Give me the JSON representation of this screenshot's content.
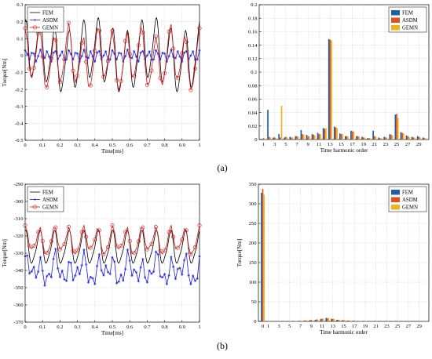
{
  "panel_labels": [
    "(a)",
    "(b)"
  ],
  "chart_data": [
    {
      "id": "a-time",
      "type": "line",
      "xlabel": "Time[ms]",
      "ylabel": "Torque[Nm]",
      "xlim": [
        0,
        1
      ],
      "ylim": [
        -0.5,
        0.3
      ],
      "xticks": [
        "0",
        "0.1",
        "0.2",
        "0.3",
        "0.4",
        "0.5",
        "0.6",
        "0.7",
        "0.8",
        "0.9",
        "1"
      ],
      "yticks": [
        "-0.5",
        "-0.4",
        "-0.3",
        "-0.2",
        "-0.1",
        "0",
        "0.1",
        "0.2",
        "0.3"
      ],
      "grid": true,
      "legend_position": "top-left",
      "series": [
        {
          "name": "FEM",
          "color": "#000000",
          "marker": "none",
          "model": {
            "mean": 0.0,
            "terms": [
              {
                "h": 12,
                "amp": 0.17,
                "phase": 1.57
              },
              {
                "h": 3,
                "amp": 0.045,
                "phase": 0.5
              },
              {
                "h": 24,
                "amp": 0.03,
                "phase": 0.3
              }
            ]
          }
        },
        {
          "name": "ASDM",
          "color": "#1a1aee",
          "marker": "asterisk",
          "model": {
            "mean": 0.0,
            "terms": [
              {
                "h": 24,
                "amp": 0.03,
                "phase": 1.2
              },
              {
                "h": 12,
                "amp": 0.008,
                "phase": 0.4
              }
            ]
          }
        },
        {
          "name": "GEMN",
          "color": "#dd1111",
          "marker": "circle",
          "model": {
            "mean": -0.02,
            "terms": [
              {
                "h": 12,
                "amp": 0.155,
                "phase": 1.7
              },
              {
                "h": 24,
                "amp": 0.025,
                "phase": 0.9
              },
              {
                "h": 5,
                "amp": 0.04,
                "phase": 0.2
              }
            ]
          }
        }
      ]
    },
    {
      "id": "a-harmonics",
      "type": "bar",
      "xlabel": "Time harmonic order",
      "ylabel": "",
      "ylim": [
        0,
        0.2
      ],
      "yticks": [
        "0",
        "0.02",
        "0.04",
        "0.06",
        "0.08",
        "0.1",
        "0.12",
        "0.14",
        "0.16",
        "0.18",
        "0.2"
      ],
      "xticks": [
        "1",
        "3",
        "5",
        "7",
        "9",
        "11",
        "13",
        "15",
        "17",
        "19",
        "21",
        "23",
        "25",
        "27",
        "29"
      ],
      "grid": true,
      "legend_position": "top-right",
      "categories": [
        "1",
        "2",
        "3",
        "4",
        "5",
        "6",
        "7",
        "8",
        "9",
        "10",
        "11",
        "12",
        "13",
        "14",
        "15",
        "16",
        "17",
        "18",
        "19",
        "20",
        "21",
        "22",
        "23",
        "24",
        "25",
        "26",
        "27",
        "28",
        "29",
        "30"
      ],
      "series": [
        {
          "name": "FEM",
          "color": "#1f5fa8",
          "values": [
            0.001,
            0.044,
            0.003,
            0.008,
            0.003,
            0.004,
            0.005,
            0.014,
            0.007,
            0.008,
            0.01,
            0.017,
            0.149,
            0.019,
            0.009,
            0.005,
            0.013,
            0.005,
            0.004,
            0.002,
            0.013,
            0.003,
            0.004,
            0.008,
            0.037,
            0.011,
            0.006,
            0.004,
            0.005,
            0.003
          ]
        },
        {
          "name": "ASDM",
          "color": "#e0521b",
          "values": [
            0.002,
            0.004,
            0.003,
            0.003,
            0.004,
            0.003,
            0.005,
            0.008,
            0.005,
            0.007,
            0.008,
            0.016,
            0.148,
            0.018,
            0.008,
            0.005,
            0.012,
            0.005,
            0.003,
            0.002,
            0.005,
            0.002,
            0.003,
            0.007,
            0.038,
            0.01,
            0.005,
            0.003,
            0.004,
            0.002
          ]
        },
        {
          "name": "GEMN",
          "color": "#f0b21e",
          "values": [
            0.001,
            0.003,
            0.002,
            0.05,
            0.003,
            0.003,
            0.004,
            0.007,
            0.005,
            0.006,
            0.008,
            0.017,
            0.147,
            0.017,
            0.008,
            0.004,
            0.012,
            0.004,
            0.003,
            0.002,
            0.004,
            0.002,
            0.003,
            0.006,
            0.032,
            0.009,
            0.004,
            0.003,
            0.003,
            0.002
          ]
        }
      ]
    },
    {
      "id": "b-time",
      "type": "line",
      "xlabel": "Time[ms]",
      "ylabel": "Torque[Nm]",
      "xlim": [
        0,
        1
      ],
      "ylim": [
        -370,
        -290
      ],
      "xticks": [
        "0",
        "0.1",
        "0.2",
        "0.3",
        "0.4",
        "0.5",
        "0.6",
        "0.7",
        "0.8",
        "0.9",
        "1"
      ],
      "yticks": [
        "-370",
        "-360",
        "-350",
        "-340",
        "-330",
        "-320",
        "-310",
        "-300",
        "-290"
      ],
      "grid": true,
      "legend_position": "top-left",
      "series": [
        {
          "name": "FEM",
          "color": "#000000",
          "marker": "none",
          "model": {
            "mean": -327,
            "terms": [
              {
                "h": 12,
                "amp": 9,
                "phase": 1.57
              },
              {
                "h": 24,
                "amp": 2,
                "phase": 0.5
              }
            ]
          }
        },
        {
          "name": "ASDM",
          "color": "#1a1aee",
          "marker": "asterisk",
          "model": {
            "mean": -340,
            "terms": [
              {
                "h": 12,
                "amp": 5,
                "phase": 1.2
              },
              {
                "h": 24,
                "amp": 5,
                "phase": 0.7
              },
              {
                "h": 7,
                "amp": 3,
                "phase": 0.1
              }
            ]
          }
        },
        {
          "name": "GEMN",
          "color": "#dd1111",
          "marker": "circle",
          "model": {
            "mean": -323,
            "terms": [
              {
                "h": 12,
                "amp": 7,
                "phase": 1.6
              },
              {
                "h": 24,
                "amp": 2,
                "phase": 1.0
              },
              {
                "h": 6,
                "amp": 1.5,
                "phase": 0.3
              }
            ]
          }
        }
      ]
    },
    {
      "id": "b-harmonics",
      "type": "bar",
      "xlabel": "Time harmonic order",
      "ylabel": "Torque[Nm]",
      "ylim": [
        0,
        350
      ],
      "yticks": [
        "0",
        "50",
        "100",
        "150",
        "200",
        "250",
        "300",
        "350"
      ],
      "xticks": [
        "0",
        "1",
        "3",
        "5",
        "7",
        "9",
        "11",
        "13",
        "15",
        "17",
        "19",
        "21",
        "23",
        "25",
        "27",
        "29"
      ],
      "grid": true,
      "legend_position": "top-right",
      "categories": [
        "0",
        "1",
        "2",
        "3",
        "4",
        "5",
        "6",
        "7",
        "8",
        "9",
        "10",
        "11",
        "12",
        "13",
        "14",
        "15",
        "16",
        "17",
        "18",
        "19",
        "20",
        "21",
        "22",
        "23",
        "24",
        "25",
        "26",
        "27",
        "28",
        "29",
        "30"
      ],
      "series": [
        {
          "name": "FEM",
          "color": "#1f5fa8",
          "values": [
            328,
            0.5,
            0.5,
            0.8,
            0.6,
            0.8,
            1,
            1.2,
            2,
            3,
            4,
            6,
            9,
            7,
            4,
            3,
            2,
            1.5,
            1,
            0.8,
            0.6,
            0.5,
            0.5,
            0.5,
            0.6,
            0.5,
            0.4,
            0.4,
            0.3,
            0.3,
            0.3
          ]
        },
        {
          "name": "ASDM",
          "color": "#e0521b",
          "values": [
            338,
            0.5,
            0.6,
            0.8,
            0.7,
            0.9,
            1,
            1.5,
            2.5,
            3.5,
            5,
            7,
            8,
            6,
            4,
            3,
            2,
            1.5,
            1,
            0.8,
            0.6,
            0.5,
            0.5,
            0.5,
            0.6,
            0.5,
            0.4,
            0.4,
            0.3,
            0.3,
            0.3
          ]
        },
        {
          "name": "GEMN",
          "color": "#f0b21e",
          "values": [
            323,
            0.4,
            0.5,
            0.7,
            0.6,
            0.8,
            1,
            1.3,
            2.2,
            3,
            4.5,
            6,
            8.5,
            6.5,
            4,
            3,
            2,
            1.5,
            1,
            0.8,
            0.6,
            0.5,
            0.5,
            0.5,
            0.6,
            0.5,
            0.4,
            0.4,
            0.3,
            0.3,
            0.3
          ]
        }
      ]
    }
  ]
}
